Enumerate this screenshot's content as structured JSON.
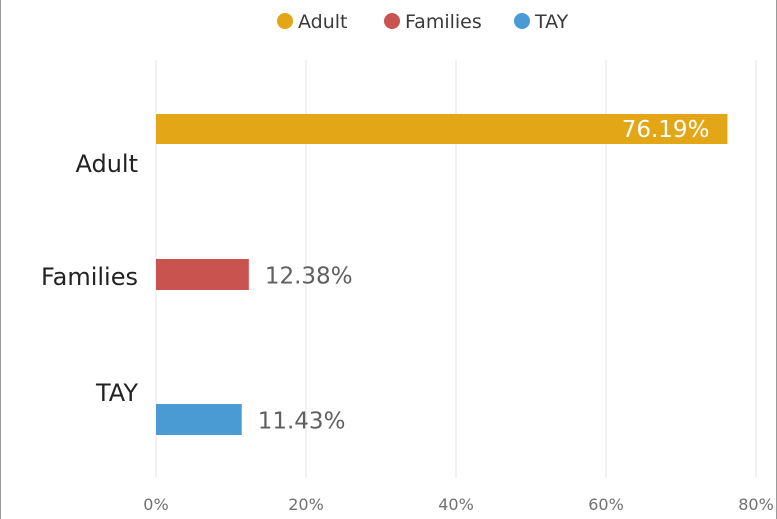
{
  "chart_data": {
    "type": "bar",
    "orientation": "horizontal",
    "categories": [
      "Adult",
      "Families",
      "TAY"
    ],
    "values": [
      76.19,
      12.38,
      11.43
    ],
    "value_labels": [
      "76.19%",
      "12.38%",
      "11.43%"
    ],
    "colors": [
      "#E2A617",
      "#C9534F",
      "#4A9BD3"
    ],
    "legend": {
      "position": "top-center",
      "entries": [
        "Adult",
        "Families",
        "TAY"
      ]
    },
    "x_axis": {
      "ticks": [
        0,
        20,
        40,
        60,
        80
      ],
      "tick_labels": [
        "0%",
        "20%",
        "40%",
        "60%",
        "80%"
      ],
      "range": [
        0,
        80
      ]
    },
    "grid": {
      "vertical": true,
      "color": "#e4e4e4"
    }
  }
}
